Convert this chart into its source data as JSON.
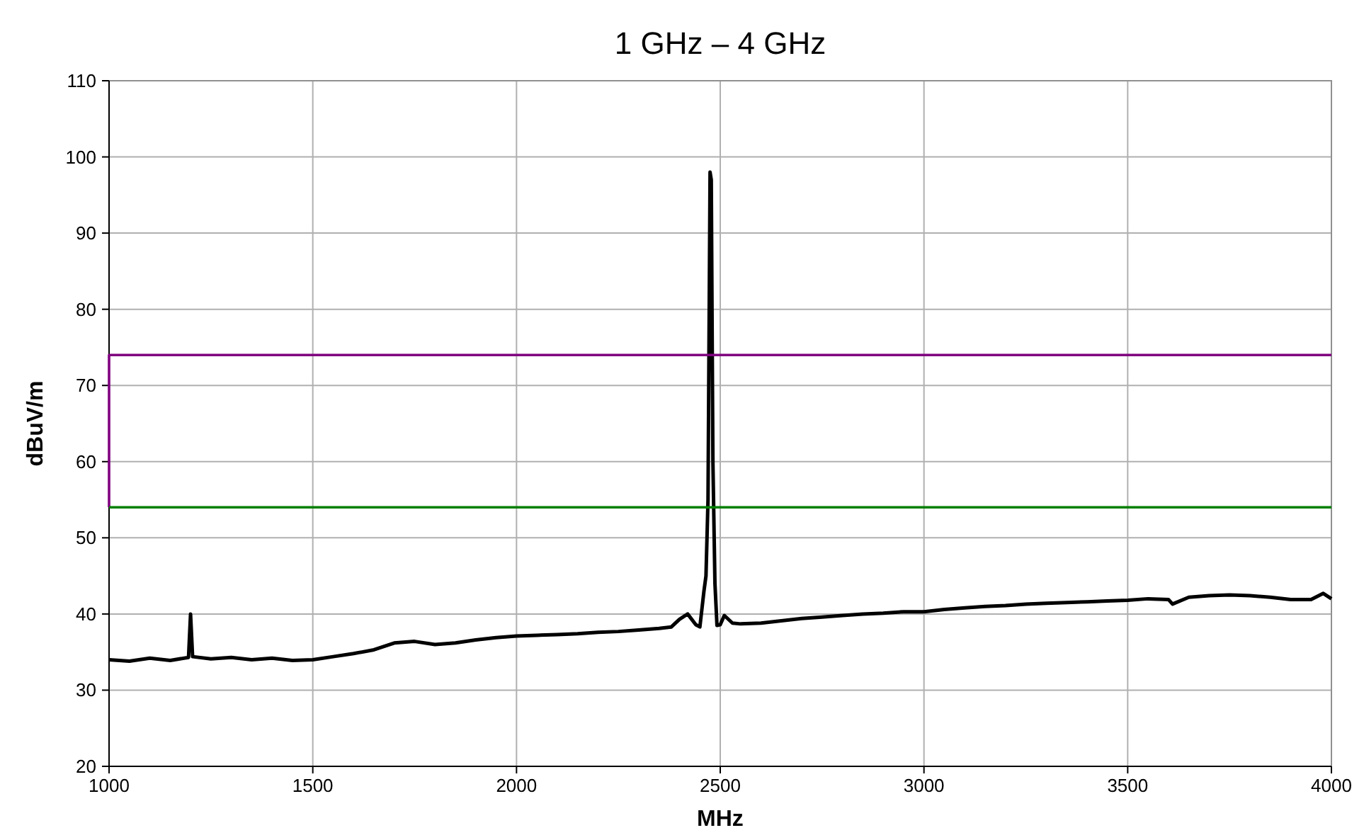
{
  "chart_data": {
    "type": "line",
    "title": "1 GHz – 4 GHz",
    "xlabel": "MHz",
    "ylabel": "dBuV/m",
    "xlim": [
      1000,
      4000
    ],
    "xticks": [
      1000,
      1500,
      2000,
      2500,
      3000,
      3500,
      4000
    ],
    "ylim": [
      20,
      110
    ],
    "yticks": [
      20,
      30,
      40,
      50,
      60,
      70,
      80,
      90,
      100,
      110
    ],
    "grid": true,
    "marker": "none",
    "line_style": "solid",
    "series": [
      {
        "color": "#000000",
        "x": [
          1000,
          1050,
          1100,
          1150,
          1195,
          1200,
          1205,
          1250,
          1300,
          1350,
          1400,
          1450,
          1500,
          1550,
          1600,
          1650,
          1700,
          1750,
          1800,
          1850,
          1900,
          1950,
          2000,
          2050,
          2100,
          2150,
          2200,
          2250,
          2300,
          2350,
          2380,
          2400,
          2420,
          2440,
          2450,
          2460,
          2465,
          2470,
          2475,
          2478,
          2482,
          2487,
          2492,
          2500,
          2510,
          2530,
          2550,
          2600,
          2650,
          2700,
          2750,
          2800,
          2850,
          2900,
          2950,
          3000,
          3050,
          3100,
          3150,
          3200,
          3250,
          3300,
          3350,
          3400,
          3450,
          3500,
          3550,
          3600,
          3610,
          3650,
          3700,
          3750,
          3800,
          3850,
          3900,
          3950,
          3980,
          4000
        ],
        "values": [
          34,
          33.8,
          34.2,
          33.9,
          34.3,
          40,
          34.4,
          34.1,
          34.3,
          34,
          34.2,
          33.9,
          34,
          34.4,
          34.8,
          35.3,
          36.2,
          36.4,
          36,
          36.2,
          36.6,
          36.9,
          37.1,
          37.2,
          37.3,
          37.4,
          37.6,
          37.7,
          37.9,
          38.1,
          38.3,
          39.3,
          40,
          38.6,
          38.3,
          43,
          45,
          55,
          98,
          97,
          60,
          44,
          38.5,
          38.6,
          39.8,
          38.8,
          38.7,
          38.8,
          39.1,
          39.4,
          39.6,
          39.8,
          40,
          40.1,
          40.3,
          40.3,
          40.6,
          40.8,
          41,
          41.1,
          41.3,
          41.4,
          41.5,
          41.6,
          41.7,
          41.8,
          42,
          41.9,
          41.3,
          42.2,
          42.4,
          42.5,
          42.4,
          42.2,
          41.9,
          41.9,
          42.7,
          42
        ]
      },
      {
        "color": "#800080",
        "x": [
          1000,
          1000,
          4000
        ],
        "values": [
          54,
          74,
          74
        ]
      },
      {
        "color": "#008000",
        "x": [
          1000,
          4000
        ],
        "values": [
          54,
          54
        ]
      }
    ]
  }
}
